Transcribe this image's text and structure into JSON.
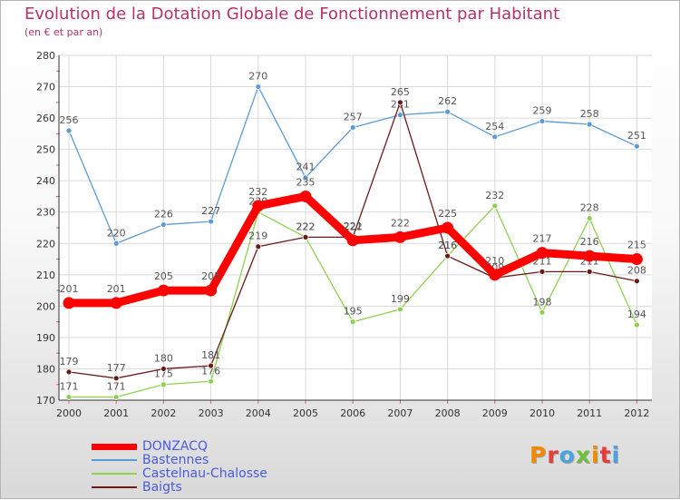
{
  "title": "Evolution de la Dotation Globale de Fonctionnement par Habitant",
  "subtitle": "(en € et par an)",
  "brand": {
    "text": "Proxiti",
    "colors": [
      "#f08a00",
      "#e63c3c",
      "#4aa3df",
      "#6bbf3a",
      "#f08a00",
      "#e63c3c",
      "#4aa3df"
    ]
  },
  "chart_data": {
    "type": "line",
    "x": [
      "2000",
      "2001",
      "2002",
      "2003",
      "2004",
      "2005",
      "2006",
      "2007",
      "2008",
      "2009",
      "2010",
      "2011",
      "2012"
    ],
    "yticks": [
      170,
      180,
      190,
      200,
      210,
      220,
      230,
      240,
      250,
      260,
      270,
      280
    ],
    "ylim": [
      170,
      280
    ],
    "grid": true,
    "legend_position": "bottom-left",
    "series": [
      {
        "name": "DONZACQ",
        "color": "#ff0000",
        "values": [
          201,
          201,
          205,
          205,
          232,
          235,
          221,
          222,
          225,
          210,
          217,
          216,
          215
        ]
      },
      {
        "name": "Bastennes",
        "color": "#5b9bd5",
        "values": [
          256,
          220,
          226,
          227,
          270,
          241,
          257,
          261,
          262,
          254,
          259,
          258,
          251
        ]
      },
      {
        "name": "Castelnau-Chalosse",
        "color": "#8fd14f",
        "values": [
          171,
          171,
          175,
          176,
          230,
          222,
          195,
          199,
          216,
          232,
          198,
          228,
          194
        ]
      },
      {
        "name": "Baigts",
        "color": "#6b1a1a",
        "values": [
          179,
          177,
          180,
          181,
          219,
          222,
          222,
          265,
          216,
          209,
          211,
          211,
          208
        ]
      }
    ]
  }
}
